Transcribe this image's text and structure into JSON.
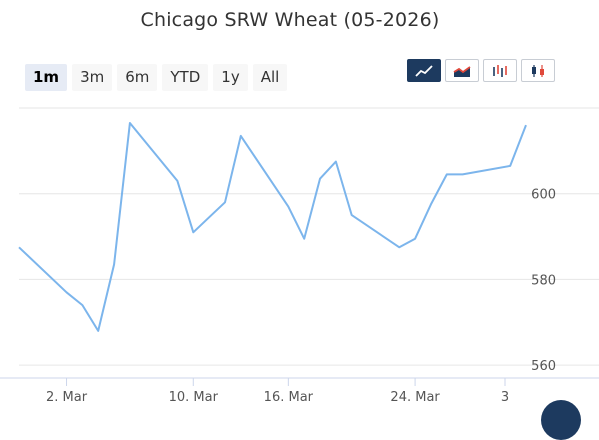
{
  "title": "Chicago SRW Wheat (05-2026)",
  "ranges": [
    "1m",
    "3m",
    "6m",
    "YTD",
    "1y",
    "All"
  ],
  "active_range": "1m",
  "chart_types": [
    {
      "name": "line-chart-icon",
      "active": true
    },
    {
      "name": "area-chart-icon",
      "active": false
    },
    {
      "name": "ohlc-chart-icon",
      "active": false
    },
    {
      "name": "candlestick-chart-icon",
      "active": false
    }
  ],
  "colors": {
    "line": "#7cb5ec",
    "grid": "#e6e6e6",
    "accent": "#1d3a5f"
  },
  "chart_data": {
    "type": "line",
    "title": "Chicago SRW Wheat (05-2026)",
    "x_tick_labels": [
      "2. Mar",
      "10. Mar",
      "16. Mar",
      "24. Mar"
    ],
    "x_ticks": [
      "2026-03-02",
      "2026-03-10",
      "2026-03-16",
      "2026-03-24"
    ],
    "y_tick_labels": [
      "560",
      "580",
      "600"
    ],
    "ylim": [
      557,
      620
    ],
    "grid": true,
    "series": [
      {
        "points": [
          [
            "2026-02-27",
            587.5
          ],
          [
            "2026-03-02",
            577.0
          ],
          [
            "2026-03-03",
            574.0
          ],
          [
            "2026-03-04",
            568.0
          ],
          [
            "2026-03-05",
            583.5
          ],
          [
            "2026-03-06",
            616.5
          ],
          [
            "2026-03-09",
            603.0
          ],
          [
            "2026-03-10",
            591.0
          ],
          [
            "2026-03-11",
            594.5
          ],
          [
            "2026-03-12",
            598.0
          ],
          [
            "2026-03-13",
            613.5
          ],
          [
            "2026-03-16",
            597.0
          ],
          [
            "2026-03-17",
            589.5
          ],
          [
            "2026-03-18",
            603.5
          ],
          [
            "2026-03-19",
            607.5
          ],
          [
            "2026-03-20",
            595.0
          ],
          [
            "2026-03-23",
            587.5
          ],
          [
            "2026-03-24",
            589.5
          ],
          [
            "2026-03-25",
            597.5
          ],
          [
            "2026-03-26",
            604.5
          ],
          [
            "2026-03-27",
            604.5
          ],
          [
            "2026-03-30",
            606.5
          ],
          [
            "2026-03-31",
            616.0
          ]
        ]
      }
    ]
  },
  "footer_tick_partial": "3"
}
